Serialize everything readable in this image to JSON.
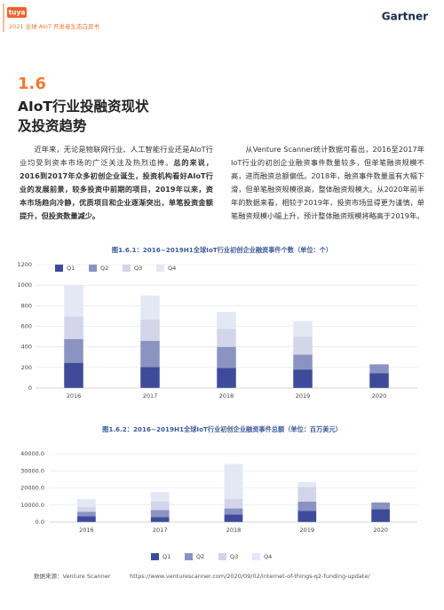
{
  "header": {
    "logo": "tuya",
    "subtitle": "2021 全球 AIoT 开发者生态白皮书",
    "brand": "Gartner"
  },
  "section": {
    "number": "1.6",
    "title_lines": [
      "AIoT行业投融资现状",
      "及投资趋势"
    ]
  },
  "paragraphs": {
    "left": [
      {
        "text": "近年来，无论是物联网行业、人工智能行业还是AIoT行业均受到资本市场的广泛关注及热烈追捧。",
        "bold": false
      },
      {
        "text": "总的来说，2016到2017年众多初创企业诞生，投资机构看好AIoT行业的发展前景，较多投资中前期的项目，2019年以来，资本市场趋向冷静，优质项目和企业逐渐突出，单笔投资金额提升，但投资数量减少。",
        "bold": true
      }
    ],
    "right": [
      {
        "text": "从Venture Scanner统计数据可看出，2016至2017年IoT行业的初创企业融资事件数量较多，但单笔融资规模不高，进而融资总额偏低。2018年，融资事件数量虽有大幅下滑，但单笔融资规模很高，整体融资规模大。从2020年前半年的数据来看，相较于2019年，投资市场显得更为谨慎，单笔融资规模小幅上升，预计整体融资规模将略高于2019年。",
        "bold": false
      }
    ]
  },
  "chart_data": [
    {
      "type": "stacked-bar",
      "title": "图1.6.1：2016~2019H1全球IoT行业初创企业融资事件个数（单位：个）",
      "categories": [
        "2016",
        "2017",
        "2018",
        "2019",
        "2020"
      ],
      "series": [
        {
          "name": "Q1",
          "color": "#3d4b9a",
          "values": [
            245,
            205,
            195,
            180,
            145
          ]
        },
        {
          "name": "Q2",
          "color": "#8a93c2",
          "values": [
            230,
            255,
            205,
            145,
            85
          ]
        },
        {
          "name": "Q3",
          "color": "#d4d4ea",
          "values": [
            220,
            205,
            175,
            175,
            null
          ]
        },
        {
          "name": "Q4",
          "color": "#e3e8f5",
          "values": [
            305,
            235,
            165,
            150,
            null
          ]
        }
      ],
      "ylim": [
        0,
        1200
      ],
      "yticks": [
        0,
        200,
        400,
        600,
        800,
        1000,
        1200
      ],
      "grid": true,
      "legend": "top-left"
    },
    {
      "type": "stacked-bar",
      "title": "图1.6.2：2016~2019H1全球IoT行业初创企业融资事件总额（单位：百万美元）",
      "categories": [
        "2016",
        "2017",
        "2018",
        "2019",
        "2020"
      ],
      "series": [
        {
          "name": "Q1",
          "color": "#3d4b9a",
          "values": [
            3500,
            3000,
            4500,
            6500,
            7500
          ]
        },
        {
          "name": "Q2",
          "color": "#8a93c2",
          "values": [
            2500,
            4000,
            3500,
            5500,
            4000
          ]
        },
        {
          "name": "Q3",
          "color": "#d4d4ea",
          "values": [
            3000,
            5000,
            5500,
            8500,
            null
          ]
        },
        {
          "name": "Q4",
          "color": "#e3e8f5",
          "values": [
            4500,
            5500,
            20500,
            3000,
            null
          ]
        }
      ],
      "ylim": [
        0,
        40000
      ],
      "yticks": [
        {
          "value": 0,
          "label": "0.0"
        },
        {
          "value": 10000,
          "label": "10000.0"
        },
        {
          "value": 20000,
          "label": "20000.0"
        },
        {
          "value": 30000,
          "label": "30000.0"
        },
        {
          "value": 40000,
          "label": "40000.0"
        }
      ],
      "grid": true,
      "legend": "bottom"
    }
  ],
  "source": {
    "label": "数据来源：Venture Scanner",
    "url": "https://www.venturescanner.com/2020/09/02/internet-of-things-q2-funding-update/"
  }
}
